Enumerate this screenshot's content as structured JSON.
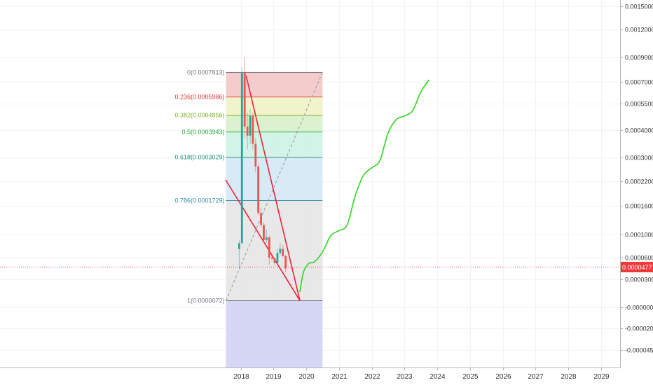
{
  "chart_data": {
    "type": "candlestick",
    "title": "",
    "xlabel": "",
    "ylabel": "",
    "x_ticks": [
      "2018",
      "2019",
      "2020",
      "2021",
      "2022",
      "2023",
      "2024",
      "2025",
      "2026",
      "2027",
      "2028",
      "2029"
    ],
    "y_ticks": [
      "0.0015000",
      "0.0012000",
      "0.0009000",
      "0.0007000",
      "0.0005500",
      "0.0004000",
      "0.0003000",
      "0.0002200",
      "0.0001600",
      "0.0001000",
      "0.0000600",
      "0.0000300",
      "-0.0000000",
      "-0.0000200",
      "-0.0000450"
    ],
    "current_price_label": "0.0000477",
    "current_price_color": "#f0383b",
    "fibonacci_levels": [
      {
        "label": "0(0.0007813)",
        "value": 0.0007813,
        "color": "#787b86",
        "fill": "#f4c7c7"
      },
      {
        "label": "0.236(0.0005986)",
        "value": 0.0005986,
        "color": "#e2363b",
        "fill": "#f0f2c4"
      },
      {
        "label": "0.382(0.0004856)",
        "value": 0.0004856,
        "color": "#7fb52b",
        "fill": "#d8f0c8"
      },
      {
        "label": "0.5(0.0003943)",
        "value": 0.0003943,
        "color": "#26a838",
        "fill": "#cdf2e6"
      },
      {
        "label": "0.618(0.0003029)",
        "value": 0.0003029,
        "color": "#1e9a6c",
        "fill": "#d3e8f5"
      },
      {
        "label": "0.786(0.0001729)",
        "value": 0.0001729,
        "color": "#3a8fa8",
        "fill": "#e6e6e6"
      },
      {
        "label": "1(0.0000072)",
        "value": 7.2e-06,
        "color": "#787b86",
        "fill": "#d4d4f4"
      }
    ],
    "candles": [
      {
        "date": "2017-12",
        "open": 7.5e-05,
        "high": 9e-05,
        "low": 4.5e-05,
        "close": 8.5e-05,
        "dir": "up"
      },
      {
        "date": "2018-01",
        "open": 8.5e-05,
        "high": 0.00082,
        "low": 8.5e-05,
        "close": 0.00078,
        "dir": "up"
      },
      {
        "date": "2018-02",
        "open": 0.00078,
        "high": 0.0009,
        "low": 0.00037,
        "close": 0.00042,
        "dir": "down"
      },
      {
        "date": "2018-03",
        "open": 0.00042,
        "high": 0.0005,
        "low": 0.00033,
        "close": 0.00038,
        "dir": "down"
      },
      {
        "date": "2018-04",
        "open": 0.00038,
        "high": 0.00052,
        "low": 0.00035,
        "close": 0.00048,
        "dir": "up"
      },
      {
        "date": "2018-05",
        "open": 0.00048,
        "high": 0.0005,
        "low": 0.00033,
        "close": 0.00035,
        "dir": "down"
      },
      {
        "date": "2018-06",
        "open": 0.00035,
        "high": 0.00037,
        "low": 0.00025,
        "close": 0.00027,
        "dir": "down"
      },
      {
        "date": "2018-07",
        "open": 0.00027,
        "high": 0.00028,
        "low": 0.00014,
        "close": 0.000145,
        "dir": "down"
      },
      {
        "date": "2018-08",
        "open": 0.000145,
        "high": 0.000155,
        "low": 0.000115,
        "close": 0.00012,
        "dir": "down"
      },
      {
        "date": "2018-09",
        "open": 0.00012,
        "high": 0.000125,
        "low": 8.5e-05,
        "close": 9.05e-05,
        "dir": "down"
      },
      {
        "date": "2018-10",
        "open": 9.05e-05,
        "high": 0.00011,
        "low": 8.5e-05,
        "close": 9.5e-05,
        "dir": "up"
      },
      {
        "date": "2018-11",
        "open": 9.5e-05,
        "high": 9.8e-05,
        "low": 5e-05,
        "close": 6e-05,
        "dir": "down"
      },
      {
        "date": "2018-12",
        "open": 6e-05,
        "high": 6.5e-05,
        "low": 5.5e-05,
        "close": 5.85e-05,
        "dir": "down"
      },
      {
        "date": "2019-01",
        "open": 5.85e-05,
        "high": 6e-05,
        "low": 5e-05,
        "close": 5.25e-05,
        "dir": "down"
      },
      {
        "date": "2019-02",
        "open": 5.25e-05,
        "high": 7.5e-05,
        "low": 5e-05,
        "close": 6.8e-05,
        "dir": "up"
      },
      {
        "date": "2019-03",
        "open": 6.8e-05,
        "high": 8.5e-05,
        "low": 6.5e-05,
        "close": 7.5e-05,
        "dir": "up"
      },
      {
        "date": "2019-04",
        "open": 7.5e-05,
        "high": 8.2e-05,
        "low": 6e-05,
        "close": 6.25e-05,
        "dir": "down"
      },
      {
        "date": "2019-05",
        "open": 6.25e-05,
        "high": 6.5e-05,
        "low": 4e-05,
        "close": 4.5e-05,
        "dir": "down"
      }
    ],
    "projection": [
      [
        "2019-10-22",
        1.65e-05
      ],
      [
        "2019-12-01",
        4e-05
      ],
      [
        "2020-02-01",
        5.2e-05
      ],
      [
        "2020-04-01",
        5.4e-05
      ],
      [
        "2020-07-01",
        7e-05
      ],
      [
        "2020-10-01",
        9.8e-05
      ],
      [
        "2021-01-01",
        0.000108
      ],
      [
        "2021-04-01",
        0.00012
      ],
      [
        "2021-07-01",
        0.000185
      ],
      [
        "2021-10-01",
        0.00024
      ],
      [
        "2022-01-01",
        0.000265
      ],
      [
        "2022-04-01",
        0.00029
      ],
      [
        "2022-07-01",
        0.00039
      ],
      [
        "2022-10-01",
        0.00046
      ],
      [
        "2023-01-01",
        0.00048
      ],
      [
        "2023-04-01",
        0.00051
      ],
      [
        "2023-07-01",
        0.00063
      ],
      [
        "2023-10-01",
        0.000717
      ]
    ],
    "triangle_upper": [
      [
        "2018-03-01",
        0.00075
      ],
      [
        "2019-10-22",
        7.2e-06
      ]
    ],
    "triangle_lower": [
      [
        "2017-07-16",
        0.000225
      ],
      [
        "2019-10-22",
        7.2e-06
      ]
    ],
    "fib_range_dates": [
      "2017-07-20",
      "2020-07-01"
    ],
    "fib_diagonal": [
      [
        "2017-07-20",
        7.2e-06
      ],
      [
        "2020-07-01",
        0.0007813
      ]
    ],
    "grid": true
  }
}
